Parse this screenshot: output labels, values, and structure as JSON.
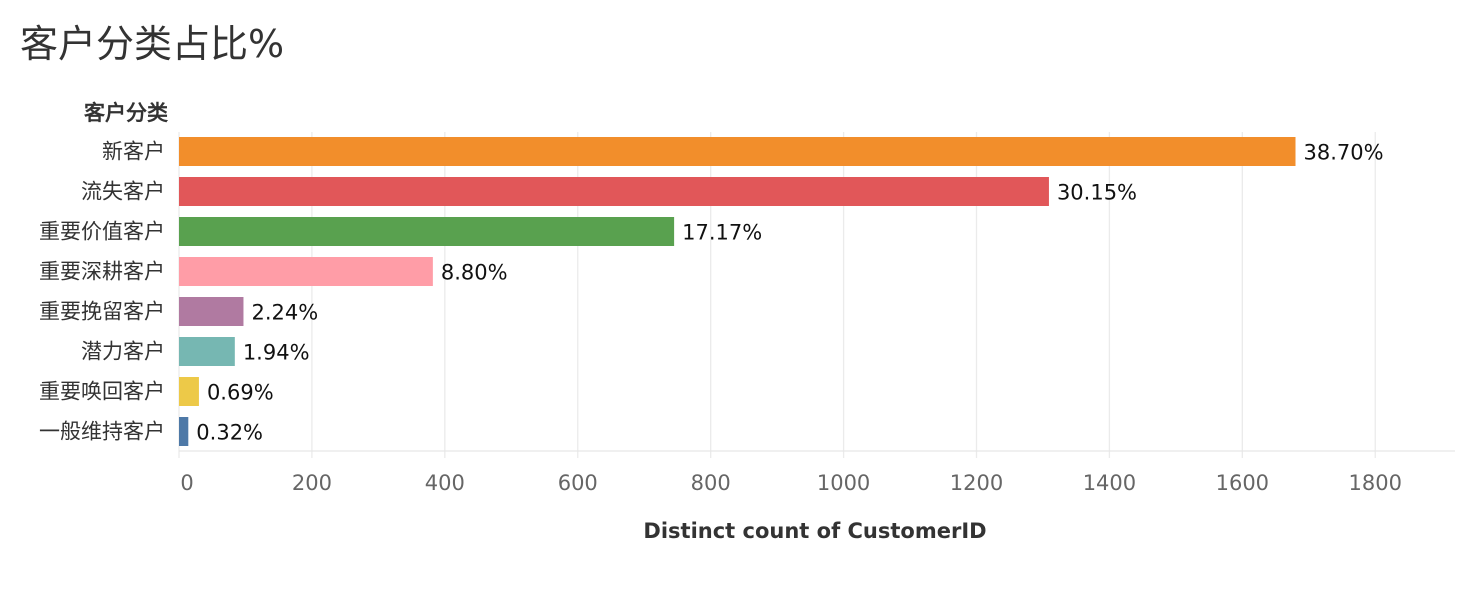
{
  "title": "客户分类占比%",
  "chart_data": {
    "type": "bar",
    "orientation": "horizontal",
    "title": "客户分类占比%",
    "category_header": "客户分类",
    "xlabel": "Distinct count of CustomerID",
    "xlim": [
      0,
      1920
    ],
    "xticks": [
      0,
      200,
      400,
      600,
      800,
      1000,
      1200,
      1400,
      1600,
      1800
    ],
    "grid": true,
    "categories": [
      "新客户",
      "流失客户",
      "重要价值客户",
      "重要深耕客户",
      "重要挽留客户",
      "潜力客户",
      "重要唤回客户",
      "一般维持客户"
    ],
    "values": [
      1680,
      1309,
      745,
      382,
      97,
      84,
      30,
      14
    ],
    "labels": [
      "38.70%",
      "30.15%",
      "17.17%",
      "8.80%",
      "2.24%",
      "1.94%",
      "0.69%",
      "0.32%"
    ],
    "colors": [
      "#F28E2B",
      "#E15759",
      "#59A14F",
      "#FF9DA7",
      "#B07AA1",
      "#76B7B2",
      "#EDC948",
      "#4E79A7"
    ]
  }
}
